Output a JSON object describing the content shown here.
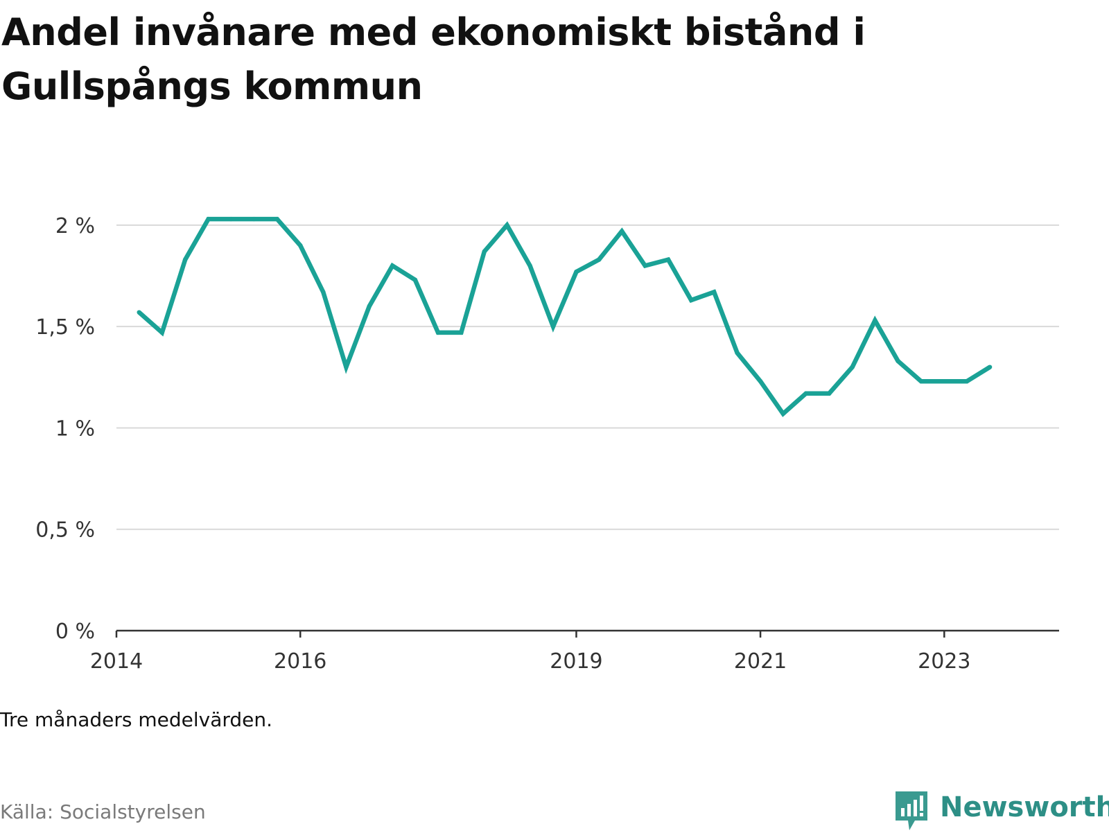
{
  "title": "Andel invånare med ekonomiskt bistånd i Gullspångs kommun",
  "note": "Tre månaders medelvärden.",
  "source": "Källa: Socialstyrelsen",
  "brand": {
    "name": "Newsworthy",
    "icon": "newsworthy-logo-icon",
    "color": "#3a9a90"
  },
  "colors": {
    "line": "#1aa296",
    "grid": "#d9d9d9",
    "axis": "#333333"
  },
  "chart_data": {
    "type": "line",
    "title": "Andel invånare med ekonomiskt bistånd i Gullspångs kommun",
    "xlabel": "",
    "ylabel": "",
    "ylim": [
      0,
      2.15
    ],
    "xlim": [
      "2014-01-01",
      "2024-04-01"
    ],
    "y_ticks": [
      0,
      0.5,
      1,
      1.5,
      2
    ],
    "y_tick_labels": [
      "0 %",
      "0,5 %",
      "1 %",
      "1,5 %",
      "2 %"
    ],
    "x_ticks": [
      "2014-01-01",
      "2016-01-01",
      "2019-01-01",
      "2021-01-01",
      "2023-01-01"
    ],
    "x_tick_labels": [
      "2014",
      "2016",
      "2019",
      "2021",
      "2023"
    ],
    "grid": true,
    "series": [
      {
        "x": [
          "2014-04-01",
          "2014-07-01",
          "2014-10-01",
          "2015-01-01",
          "2015-04-01",
          "2015-07-01",
          "2015-10-01",
          "2016-01-01",
          "2016-04-01",
          "2016-07-01",
          "2016-10-01",
          "2017-01-01",
          "2017-04-01",
          "2017-07-01",
          "2017-10-01",
          "2018-01-01",
          "2018-04-01",
          "2018-07-01",
          "2018-10-01",
          "2019-01-01",
          "2019-04-01",
          "2019-07-01",
          "2019-10-01",
          "2020-01-01",
          "2020-04-01",
          "2020-07-01",
          "2020-10-01",
          "2021-01-01",
          "2021-04-01",
          "2021-07-01",
          "2021-10-01",
          "2022-01-01",
          "2022-04-01",
          "2022-07-01",
          "2022-10-01",
          "2023-01-01",
          "2023-04-01",
          "2023-07-01"
        ],
        "values": [
          1.57,
          1.47,
          1.83,
          2.03,
          2.03,
          2.03,
          2.03,
          1.9,
          1.67,
          1.3,
          1.6,
          1.8,
          1.73,
          1.47,
          1.47,
          1.87,
          2.0,
          1.8,
          1.5,
          1.77,
          1.83,
          1.97,
          1.8,
          1.83,
          1.63,
          1.67,
          1.37,
          1.23,
          1.07,
          1.17,
          1.17,
          1.3,
          1.53,
          1.33,
          1.23,
          1.23,
          1.23,
          1.3
        ]
      }
    ]
  }
}
